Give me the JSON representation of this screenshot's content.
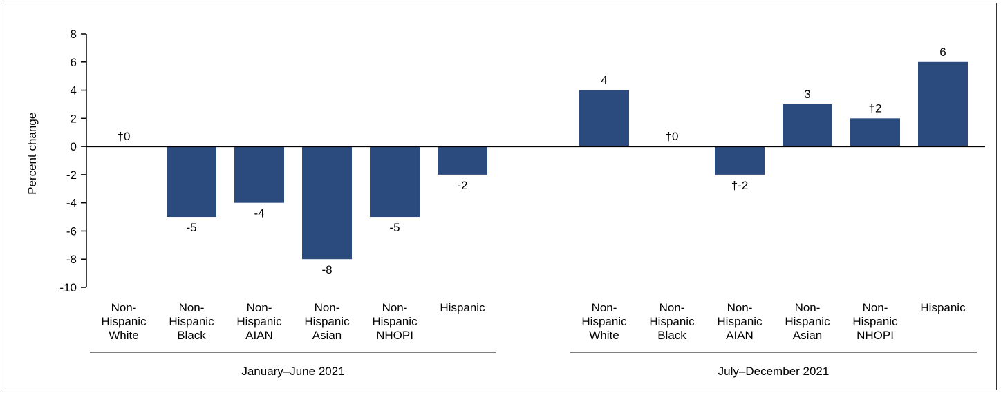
{
  "chart_data": {
    "type": "bar",
    "ylabel": "Percent change",
    "ylim": [
      -10,
      8
    ],
    "yticks": [
      8,
      6,
      4,
      2,
      0,
      -2,
      -4,
      -6,
      -8,
      -10
    ],
    "grid": false,
    "bar_color": "#2b4a7e",
    "groups": [
      {
        "label": "January–June 2021",
        "categories": [
          [
            "Non-",
            "Hispanic",
            "White"
          ],
          [
            "Non-",
            "Hispanic",
            "Black"
          ],
          [
            "Non-",
            "Hispanic",
            "AIAN"
          ],
          [
            "Non-",
            "Hispanic",
            "Asian"
          ],
          [
            "Non-",
            "Hispanic",
            "NHOPI"
          ],
          [
            "Hispanic"
          ]
        ],
        "values": [
          0,
          -5,
          -4,
          -8,
          -5,
          -2
        ],
        "data_labels": [
          "†0",
          "-5",
          "-4",
          "-8",
          "-5",
          "-2"
        ]
      },
      {
        "label": "July–December 2021",
        "categories": [
          [
            "Non-",
            "Hispanic",
            "White"
          ],
          [
            "Non-",
            "Hispanic",
            "Black"
          ],
          [
            "Non-",
            "Hispanic",
            "AIAN"
          ],
          [
            "Non-",
            "Hispanic",
            "Asian"
          ],
          [
            "Non-",
            "Hispanic",
            "NHOPI"
          ],
          [
            "Hispanic"
          ]
        ],
        "values": [
          4,
          0,
          -2,
          3,
          2,
          6
        ],
        "data_labels": [
          "4",
          "†0",
          "†-2",
          "3",
          "†2",
          "6"
        ]
      }
    ]
  }
}
